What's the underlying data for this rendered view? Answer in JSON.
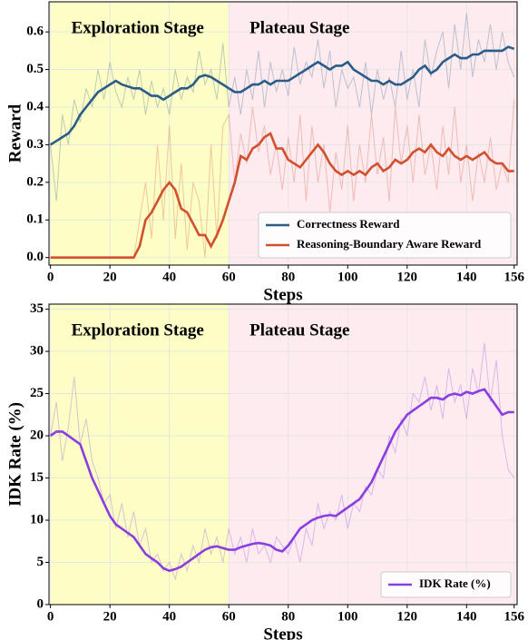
{
  "chart_data": [
    {
      "type": "line",
      "ylabel": "Reward",
      "xlabel": "Steps",
      "x": [
        0,
        2,
        4,
        6,
        8,
        10,
        12,
        14,
        16,
        18,
        20,
        22,
        24,
        26,
        28,
        30,
        32,
        34,
        36,
        38,
        40,
        42,
        44,
        46,
        48,
        50,
        52,
        54,
        56,
        58,
        60,
        62,
        64,
        66,
        68,
        70,
        72,
        74,
        76,
        78,
        80,
        82,
        84,
        86,
        88,
        90,
        92,
        94,
        96,
        98,
        100,
        102,
        104,
        106,
        108,
        110,
        112,
        114,
        116,
        118,
        120,
        122,
        124,
        126,
        128,
        130,
        132,
        134,
        136,
        138,
        140,
        142,
        144,
        146,
        148,
        150,
        152,
        154,
        156
      ],
      "xlim": [
        -0.5,
        157
      ],
      "xticks": [
        0,
        20,
        40,
        60,
        80,
        100,
        120,
        140,
        156
      ],
      "ylim": [
        -0.02,
        0.68
      ],
      "yticks": [
        {
          "value": 0,
          "label": "0.0"
        },
        0.1,
        0.2,
        0.3,
        0.4,
        0.5,
        0.6
      ],
      "grid": true,
      "legend": "lower right",
      "regions": [
        {
          "label": "Exploration Stage",
          "start": 0,
          "end": 60,
          "color": "#fdfdc6"
        },
        {
          "label": "Plateau Stage",
          "start": 60,
          "end": 157,
          "color": "#fdebef"
        }
      ],
      "series": [
        {
          "name": "Correctness Reward",
          "color": "#2b5c89",
          "values": [
            0.3,
            0.31,
            0.32,
            0.33,
            0.35,
            0.38,
            0.4,
            0.42,
            0.44,
            0.45,
            0.46,
            0.47,
            0.46,
            0.455,
            0.45,
            0.45,
            0.44,
            0.43,
            0.43,
            0.42,
            0.43,
            0.44,
            0.45,
            0.45,
            0.46,
            0.48,
            0.485,
            0.48,
            0.47,
            0.46,
            0.45,
            0.44,
            0.44,
            0.45,
            0.46,
            0.46,
            0.47,
            0.46,
            0.47,
            0.47,
            0.47,
            0.48,
            0.49,
            0.5,
            0.51,
            0.52,
            0.51,
            0.5,
            0.51,
            0.51,
            0.52,
            0.5,
            0.49,
            0.48,
            0.47,
            0.47,
            0.46,
            0.47,
            0.46,
            0.46,
            0.47,
            0.48,
            0.5,
            0.51,
            0.49,
            0.5,
            0.52,
            0.53,
            0.54,
            0.53,
            0.53,
            0.54,
            0.54,
            0.55,
            0.55,
            0.55,
            0.55,
            0.56,
            0.555
          ],
          "raw": [
            0.3,
            0.15,
            0.38,
            0.3,
            0.42,
            0.36,
            0.45,
            0.4,
            0.5,
            0.42,
            0.52,
            0.44,
            0.4,
            0.48,
            0.42,
            0.5,
            0.38,
            0.47,
            0.4,
            0.45,
            0.38,
            0.5,
            0.42,
            0.48,
            0.44,
            0.55,
            0.46,
            0.5,
            0.42,
            0.57,
            0.4,
            0.48,
            0.38,
            0.5,
            0.42,
            0.55,
            0.4,
            0.52,
            0.44,
            0.5,
            0.43,
            0.56,
            0.46,
            0.52,
            0.48,
            0.58,
            0.45,
            0.55,
            0.4,
            0.5,
            0.45,
            0.48,
            0.4,
            0.52,
            0.38,
            0.5,
            0.42,
            0.48,
            0.4,
            0.55,
            0.42,
            0.5,
            0.4,
            0.58,
            0.48,
            0.55,
            0.6,
            0.45,
            0.62,
            0.5,
            0.65,
            0.48,
            0.58,
            0.52,
            0.62,
            0.5,
            0.6,
            0.52,
            0.48
          ]
        },
        {
          "name": "Reasoning-Boundary Aware Reward",
          "color": "#d1502e",
          "values": [
            0,
            0,
            0,
            0,
            0,
            0,
            0,
            0,
            0,
            0,
            0,
            0,
            0,
            0,
            0,
            0.03,
            0.1,
            0.12,
            0.15,
            0.18,
            0.2,
            0.18,
            0.13,
            0.12,
            0.09,
            0.06,
            0.06,
            0.03,
            0.06,
            0.1,
            0.15,
            0.2,
            0.27,
            0.26,
            0.29,
            0.3,
            0.32,
            0.33,
            0.29,
            0.29,
            0.26,
            0.25,
            0.24,
            0.26,
            0.28,
            0.3,
            0.28,
            0.25,
            0.23,
            0.22,
            0.23,
            0.22,
            0.23,
            0.22,
            0.24,
            0.25,
            0.23,
            0.24,
            0.26,
            0.25,
            0.26,
            0.28,
            0.29,
            0.28,
            0.3,
            0.28,
            0.27,
            0.29,
            0.27,
            0.26,
            0.27,
            0.26,
            0.27,
            0.28,
            0.26,
            0.25,
            0.25,
            0.23,
            0.23
          ],
          "raw": [
            0,
            0,
            0,
            0,
            0,
            0,
            0,
            0,
            0,
            0,
            0,
            0,
            0,
            0,
            0,
            0.1,
            0.2,
            0.05,
            0.3,
            0.1,
            0.35,
            0.05,
            0.25,
            0.02,
            0.2,
            0.15,
            0.0,
            0.3,
            0.05,
            0.35,
            0.38,
            0.2,
            0.33,
            0.25,
            0.4,
            0.28,
            0.35,
            0.22,
            0.3,
            0.18,
            0.32,
            0.2,
            0.38,
            0.15,
            0.35,
            0.2,
            0.3,
            0.12,
            0.28,
            0.18,
            0.35,
            0.15,
            0.3,
            0.2,
            0.38,
            0.22,
            0.32,
            0.15,
            0.4,
            0.25,
            0.35,
            0.2,
            0.38,
            0.22,
            0.3,
            0.18,
            0.35,
            0.22,
            0.4,
            0.2,
            0.3,
            0.15,
            0.28,
            0.2,
            0.32,
            0.18,
            0.25,
            0.2,
            0.42
          ]
        }
      ]
    },
    {
      "type": "line",
      "ylabel": "IDK Rate (%)",
      "xlabel": "Steps",
      "x": [
        0,
        2,
        4,
        6,
        8,
        10,
        12,
        14,
        16,
        18,
        20,
        22,
        24,
        26,
        28,
        30,
        32,
        34,
        36,
        38,
        40,
        42,
        44,
        46,
        48,
        50,
        52,
        54,
        56,
        58,
        60,
        62,
        64,
        66,
        68,
        70,
        72,
        74,
        76,
        78,
        80,
        82,
        84,
        86,
        88,
        90,
        92,
        94,
        96,
        98,
        100,
        102,
        104,
        106,
        108,
        110,
        112,
        114,
        116,
        118,
        120,
        122,
        124,
        126,
        128,
        130,
        132,
        134,
        136,
        138,
        140,
        142,
        144,
        146,
        148,
        150,
        152,
        154,
        156
      ],
      "xlim": [
        -0.5,
        157
      ],
      "xticks": [
        0,
        20,
        40,
        60,
        80,
        100,
        120,
        140,
        156
      ],
      "ylim": [
        0,
        35.6
      ],
      "yticks": [
        0,
        5,
        10,
        15,
        20,
        25,
        30,
        35
      ],
      "grid": true,
      "legend": "lower right",
      "regions": [
        {
          "label": "Exploration Stage",
          "start": 0,
          "end": 60,
          "color": "#fdfdc6"
        },
        {
          "label": "Plateau Stage",
          "start": 60,
          "end": 157,
          "color": "#fdebef"
        }
      ],
      "series": [
        {
          "name": "IDK Rate (%)",
          "color": "#8a3ee0",
          "values": [
            20,
            20.5,
            20.5,
            20,
            19.5,
            19,
            17,
            15,
            13.5,
            12,
            10.5,
            9.5,
            9,
            8.5,
            8,
            7,
            6,
            5.5,
            5,
            4.3,
            4,
            4.2,
            4.5,
            5,
            5.5,
            6,
            6.5,
            6.8,
            6.9,
            6.7,
            6.5,
            6.5,
            6.8,
            7,
            7.2,
            7.3,
            7.2,
            7,
            6.5,
            6.3,
            7,
            8,
            9,
            9.5,
            10,
            10.3,
            10.5,
            10.6,
            10.5,
            11,
            11.5,
            12,
            12.5,
            13.5,
            14.5,
            16,
            17.5,
            19,
            20.5,
            21.5,
            22.5,
            23,
            23.5,
            24,
            24.5,
            24.5,
            24.3,
            24.8,
            25,
            24.8,
            25.2,
            25,
            25.3,
            25.5,
            24.5,
            23.5,
            22.5,
            22.8,
            22.8
          ],
          "raw": [
            20,
            24,
            17,
            21,
            27,
            19,
            22,
            17,
            15,
            12,
            13,
            9,
            12,
            8,
            11,
            7,
            9,
            5,
            6,
            4,
            5,
            3,
            6,
            4,
            7,
            5,
            9,
            6,
            8,
            5,
            9,
            6,
            8,
            5,
            9,
            6,
            7,
            5,
            8,
            7,
            6,
            8,
            5,
            9,
            7,
            12,
            9,
            11,
            10,
            13,
            9,
            12,
            11,
            14,
            13,
            16,
            15,
            20,
            18,
            22,
            20,
            25,
            24,
            27,
            23,
            26,
            22,
            28,
            24,
            26,
            22,
            28,
            25,
            31,
            24,
            29,
            20,
            16,
            15
          ]
        }
      ]
    }
  ]
}
